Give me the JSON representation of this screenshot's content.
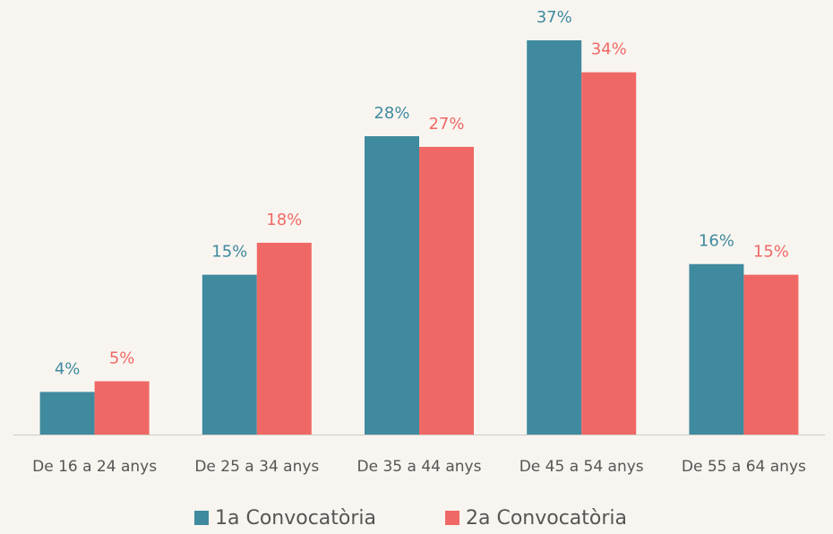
{
  "chart_data": {
    "type": "bar",
    "categories": [
      "De 16 a 24 anys",
      "De 25 a 34 anys",
      "De 35 a 44 anys",
      "De 45 a 54 anys",
      "De 55 a 64 anys"
    ],
    "series": [
      {
        "name": "1a Convocatòria",
        "color": "#3f8a9f",
        "values": [
          4,
          15,
          28,
          37,
          16
        ],
        "value_labels": [
          "4%",
          "15%",
          "28%",
          "37%",
          "16%"
        ]
      },
      {
        "name": "2a Convocatòria",
        "color": "#f06865",
        "values": [
          5,
          18,
          27,
          34,
          15
        ],
        "value_labels": [
          "5%",
          "18%",
          "27%",
          "34%",
          "15%"
        ]
      }
    ],
    "legend": "bottom"
  }
}
